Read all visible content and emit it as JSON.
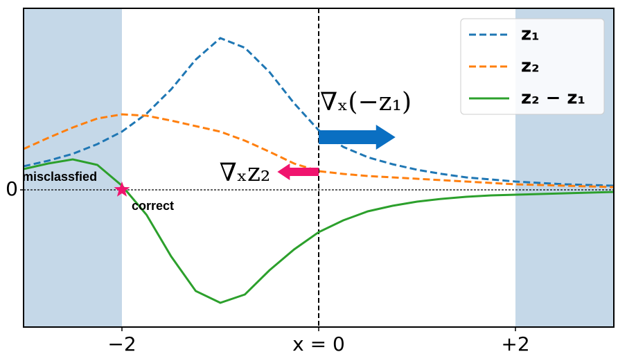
{
  "chart_data": {
    "type": "line",
    "x": [
      -3,
      -2.75,
      -2.5,
      -2.25,
      -2,
      -1.75,
      -1.5,
      -1.25,
      -1,
      -0.75,
      -0.5,
      -0.25,
      0,
      0.25,
      0.5,
      0.75,
      1,
      1.25,
      1.5,
      1.75,
      2,
      2.25,
      2.5,
      2.75,
      3
    ],
    "series": [
      {
        "name": "z₁",
        "color": "#1f77b4",
        "dash": true,
        "values": [
          0.34,
          0.42,
          0.52,
          0.66,
          0.84,
          1.1,
          1.45,
          1.88,
          2.19,
          2.05,
          1.7,
          1.25,
          0.86,
          0.62,
          0.47,
          0.37,
          0.29,
          0.23,
          0.18,
          0.15,
          0.12,
          0.1,
          0.08,
          0.07,
          0.06
        ]
      },
      {
        "name": "z₂",
        "color": "#ff7f0e",
        "dash": true,
        "values": [
          0.59,
          0.75,
          0.9,
          1.03,
          1.09,
          1.07,
          1.0,
          0.92,
          0.84,
          0.71,
          0.55,
          0.38,
          0.27,
          0.23,
          0.2,
          0.18,
          0.16,
          0.14,
          0.12,
          0.1,
          0.08,
          0.07,
          0.06,
          0.05,
          0.04
        ]
      },
      {
        "name": "z₂ − z₁",
        "color": "#2ca02c",
        "dash": false,
        "values": [
          0.3,
          0.38,
          0.44,
          0.36,
          0.06,
          -0.36,
          -0.96,
          -1.46,
          -1.63,
          -1.51,
          -1.16,
          -0.86,
          -0.61,
          -0.44,
          -0.31,
          -0.23,
          -0.17,
          -0.13,
          -0.1,
          -0.08,
          -0.07,
          -0.06,
          -0.05,
          -0.04,
          -0.03
        ]
      }
    ],
    "xlim": [
      -3,
      3
    ],
    "ylim": [
      -1.98,
      2.62
    ],
    "xticks": [
      {
        "value": -2,
        "label": "−2"
      },
      {
        "value": 0,
        "label": "x = 0"
      },
      {
        "value": 2,
        "label": "+2"
      }
    ],
    "yticks": [
      0
    ],
    "shaded_regions": [
      [
        -3,
        -2
      ],
      [
        2,
        3
      ]
    ],
    "shade_color": "#c5d8e8",
    "vline": 0,
    "hline": 0,
    "point": {
      "x": -2,
      "y": 0,
      "color": "#f0146e",
      "label_above": "misclassfied",
      "label_below": "correct"
    },
    "arrows": [
      {
        "label": "∇ₓ(−z₁)",
        "x": 0,
        "y": 0.76,
        "dx": 0.78,
        "color": "#0a6fc2"
      },
      {
        "label": "∇ₓz₂",
        "x": 0,
        "y": 0.26,
        "dx": -0.42,
        "color": "#f0146e"
      }
    ],
    "legend": "upper right"
  }
}
